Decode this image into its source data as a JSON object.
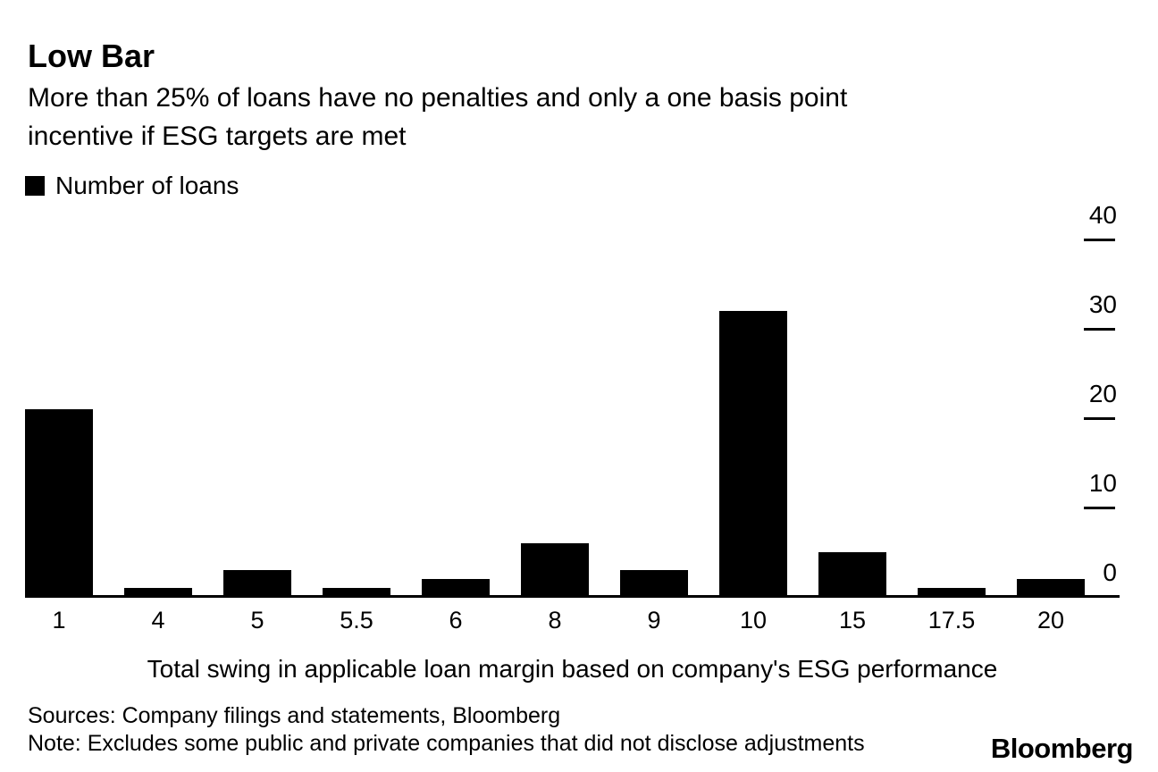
{
  "header": {
    "title": "Low Bar",
    "subtitle_lines": [
      "More than 25% of loans have no penalties and only a one basis point",
      "incentive if ESG targets are met"
    ]
  },
  "legend": {
    "swatch_color": "#000000",
    "label": "Number of loans"
  },
  "chart_data": {
    "type": "bar",
    "title": "Low Bar",
    "subtitle": "More than 25% of loans have no penalties and only a one basis point incentive if ESG targets are met",
    "series_name": "Number of loans",
    "categories": [
      "1",
      "4",
      "5",
      "5.5",
      "6",
      "8",
      "9",
      "10",
      "15",
      "17.5",
      "20"
    ],
    "values": [
      21,
      1,
      3,
      1,
      2,
      6,
      3,
      32,
      5,
      1,
      2
    ],
    "xlabel": "Total swing in applicable loan margin based on company's ESG performance",
    "ylabel": "",
    "yticks": [
      0,
      10,
      20,
      30,
      40
    ],
    "ylim": [
      0,
      40
    ],
    "bar_color": "#000000",
    "background_color": "#ffffff",
    "grid": false,
    "y_axis_side": "right",
    "legend_position": "top-left"
  },
  "footer": {
    "sources": "Sources: Company filings and statements, Bloomberg",
    "note": "Note: Excludes some public and private companies that did not disclose adjustments",
    "brand": "Bloomberg"
  }
}
